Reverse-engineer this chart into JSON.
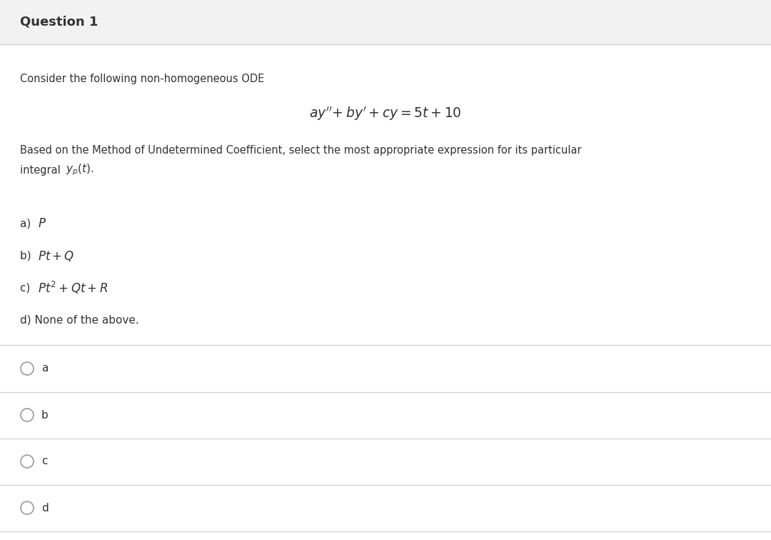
{
  "title": "Question 1",
  "title_bg_color": "#f2f2f2",
  "title_fontsize": 12.5,
  "title_fontweight": "bold",
  "body_bg_color": "#ffffff",
  "intro_text": "Consider the following non-homogeneous ODE",
  "description_line1": "Based on the Method of Undetermined Coefficient, select the most appropriate expression for its particular",
  "description_line2": "integral ",
  "radio_options": [
    "a",
    "b",
    "c",
    "d"
  ],
  "separator_color": "#d0d0d0",
  "text_color": "#333333",
  "light_text_color": "#555555"
}
